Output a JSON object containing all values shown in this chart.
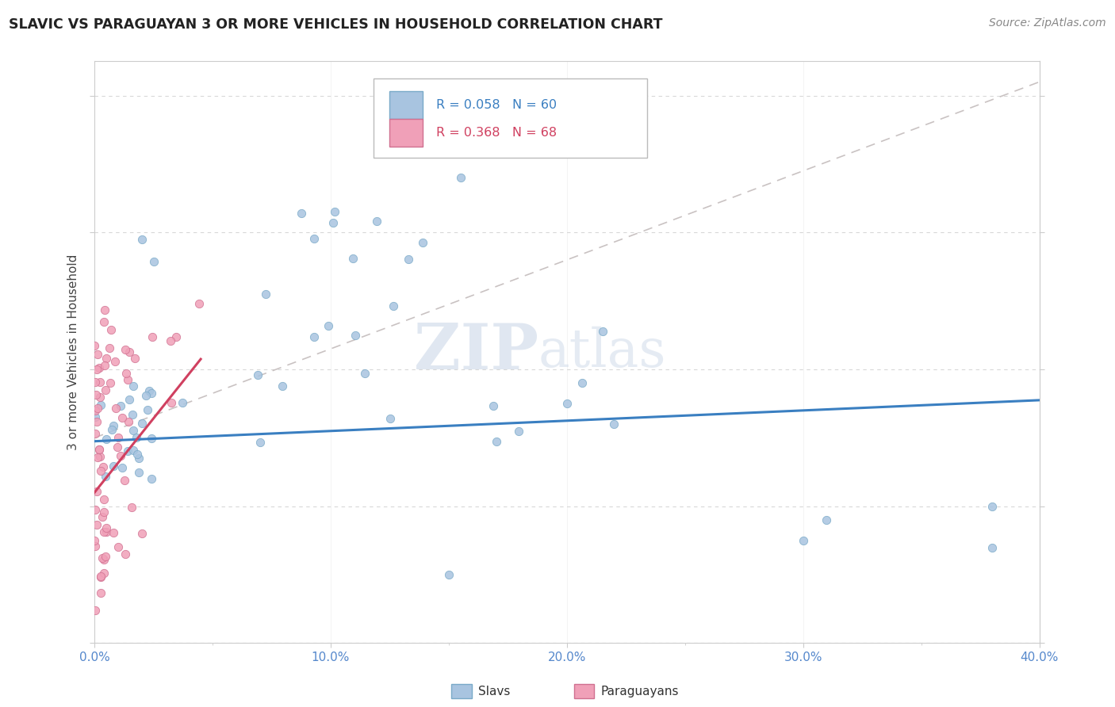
{
  "title": "SLAVIC VS PARAGUAYAN 3 OR MORE VEHICLES IN HOUSEHOLD CORRELATION CHART",
  "source": "Source: ZipAtlas.com",
  "xlim": [
    0.0,
    0.4
  ],
  "ylim": [
    0.0,
    0.85
  ],
  "ylabel": "3 or more Vehicles in Household",
  "slavs_color": "#a8c4e0",
  "slavs_edge_color": "#7aaac8",
  "paraguayans_color": "#f0a0b8",
  "paraguayans_edge_color": "#d07090",
  "slavs_line_color": "#3a7fc1",
  "paraguayans_line_color": "#d04060",
  "ref_line_color": "#c0b8b8",
  "tick_label_color": "#5588cc",
  "ylabel_color": "#444444",
  "title_color": "#222222",
  "source_color": "#888888",
  "watermark_color": "#ccd8e8",
  "legend_r_slavs": "R = 0.058",
  "legend_n_slavs": "N = 60",
  "legend_r_para": "R = 0.368",
  "legend_n_para": "N = 68",
  "bottom_label_slavs": "Slavs",
  "bottom_label_para": "Paraguayans",
  "slavs_trend_x0": 0.0,
  "slavs_trend_y0": 0.295,
  "slavs_trend_x1": 0.4,
  "slavs_trend_y1": 0.355,
  "para_trend_x0": 0.0,
  "para_trend_y0": 0.22,
  "para_trend_x1": 0.045,
  "para_trend_y1": 0.415,
  "ref_line_x0": 0.0,
  "ref_line_y0": 0.3,
  "ref_line_x1": 0.4,
  "ref_line_y1": 0.82
}
